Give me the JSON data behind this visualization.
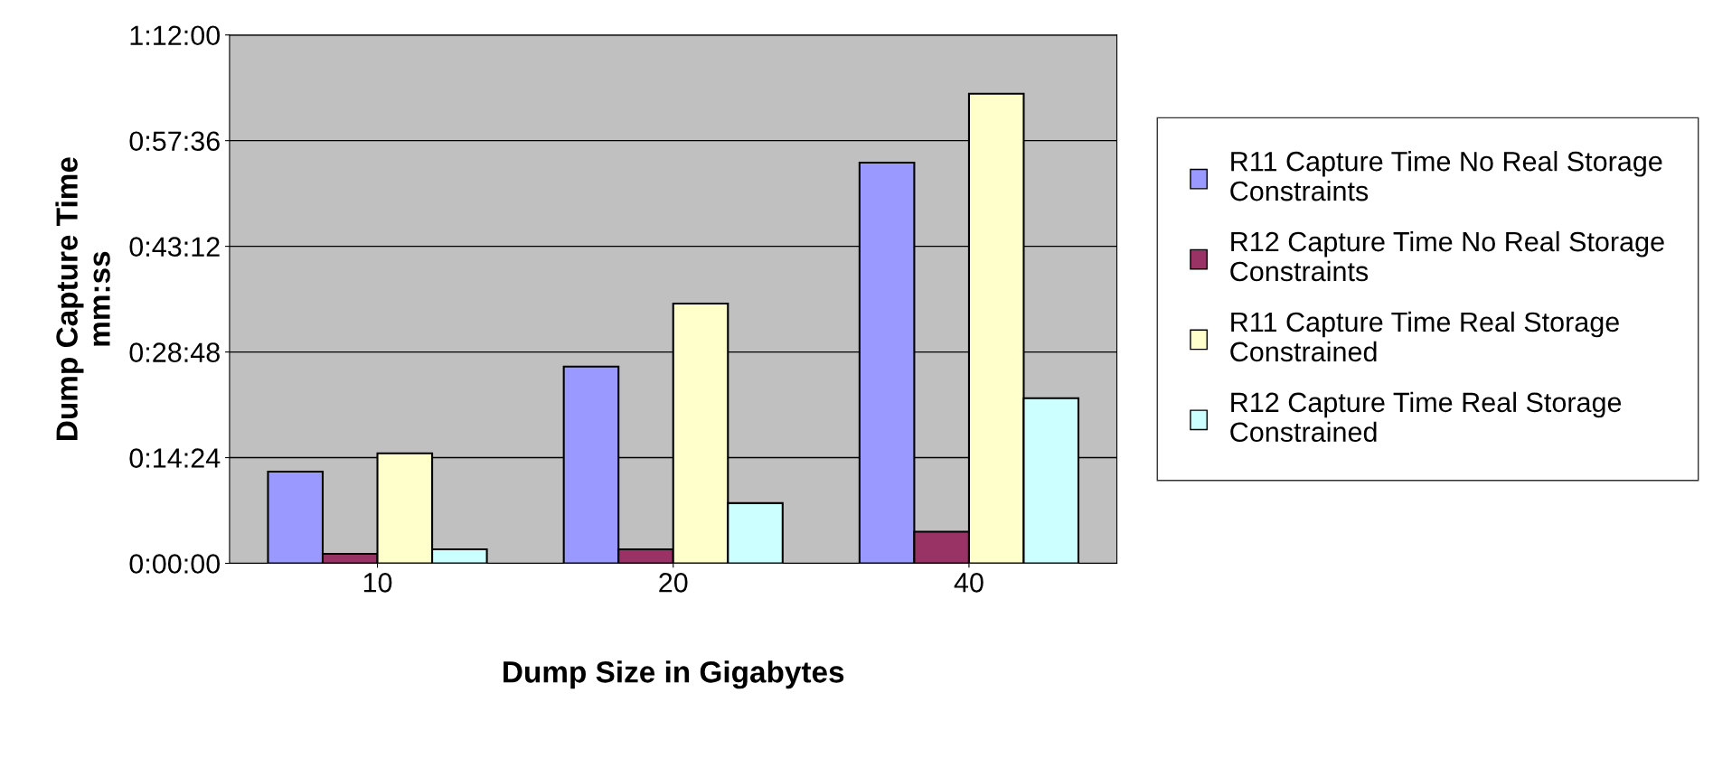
{
  "chart_data": {
    "type": "bar",
    "xlabel": "Dump Size in Gigabytes",
    "ylabel": "Dump Capture Time\nmm:ss",
    "categories": [
      "10",
      "20",
      "40"
    ],
    "series": [
      {
        "name": "R11 Capture Time No Real Storage Constraints",
        "color": "#9999ff",
        "values": [
          12.5,
          26.8,
          54.6
        ]
      },
      {
        "name": "R12 Capture Time No Real Storage Constraints",
        "color": "#993366",
        "values": [
          1.3,
          1.9,
          4.3
        ]
      },
      {
        "name": "R11 Capture Time Real Storage Constrained",
        "color": "#ffffcc",
        "values": [
          15.0,
          35.4,
          64.0
        ]
      },
      {
        "name": "R12 Capture Time Real Storage Constrained",
        "color": "#ccffff",
        "values": [
          1.9,
          8.2,
          22.5
        ]
      }
    ],
    "ylim": [
      0,
      72
    ],
    "yticks": [
      {
        "value": 0,
        "label": "0:00:00"
      },
      {
        "value": 14.4,
        "label": "0:14:24"
      },
      {
        "value": 28.8,
        "label": "0:28:48"
      },
      {
        "value": 43.2,
        "label": "0:43:12"
      },
      {
        "value": 57.6,
        "label": "0:57:36"
      },
      {
        "value": 72,
        "label": "1:12:00"
      }
    ],
    "grid": "y",
    "legend": "right"
  }
}
